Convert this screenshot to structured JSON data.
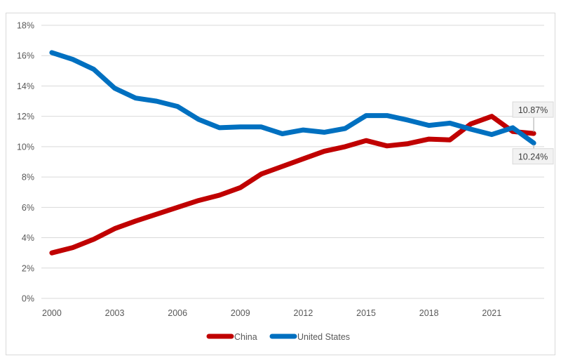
{
  "chart_data": {
    "type": "line",
    "title": "",
    "xlabel": "",
    "ylabel": "",
    "x": [
      2000,
      2001,
      2002,
      2003,
      2004,
      2005,
      2006,
      2007,
      2008,
      2009,
      2010,
      2011,
      2012,
      2013,
      2014,
      2015,
      2016,
      2017,
      2018,
      2019,
      2020,
      2021,
      2022,
      2023
    ],
    "xticks": [
      "2000",
      "2003",
      "2006",
      "2009",
      "2012",
      "2015",
      "2018",
      "2021"
    ],
    "ylim": [
      0,
      18
    ],
    "yticks": [
      "0%",
      "2%",
      "4%",
      "6%",
      "8%",
      "10%",
      "12%",
      "14%",
      "16%",
      "18%"
    ],
    "grid": true,
    "legend_position": "bottom",
    "series": [
      {
        "name": "China",
        "color": "#c00000",
        "values": [
          3.0,
          3.35,
          3.9,
          4.6,
          5.1,
          5.55,
          6.0,
          6.45,
          6.8,
          7.3,
          8.2,
          8.7,
          9.2,
          9.7,
          10.0,
          10.4,
          10.05,
          10.2,
          10.5,
          10.45,
          11.5,
          12.0,
          11.0,
          10.87
        ]
      },
      {
        "name": "United States",
        "color": "#0070c0",
        "values": [
          16.2,
          15.75,
          15.1,
          13.85,
          13.2,
          13.0,
          12.65,
          11.8,
          11.25,
          11.3,
          11.3,
          10.85,
          11.1,
          10.95,
          11.2,
          12.05,
          12.05,
          11.75,
          11.4,
          11.55,
          11.15,
          10.8,
          11.25,
          10.24
        ]
      }
    ],
    "annotations": [
      {
        "series": "China",
        "text": "10.87%"
      },
      {
        "series": "United States",
        "text": "10.24%"
      }
    ]
  }
}
